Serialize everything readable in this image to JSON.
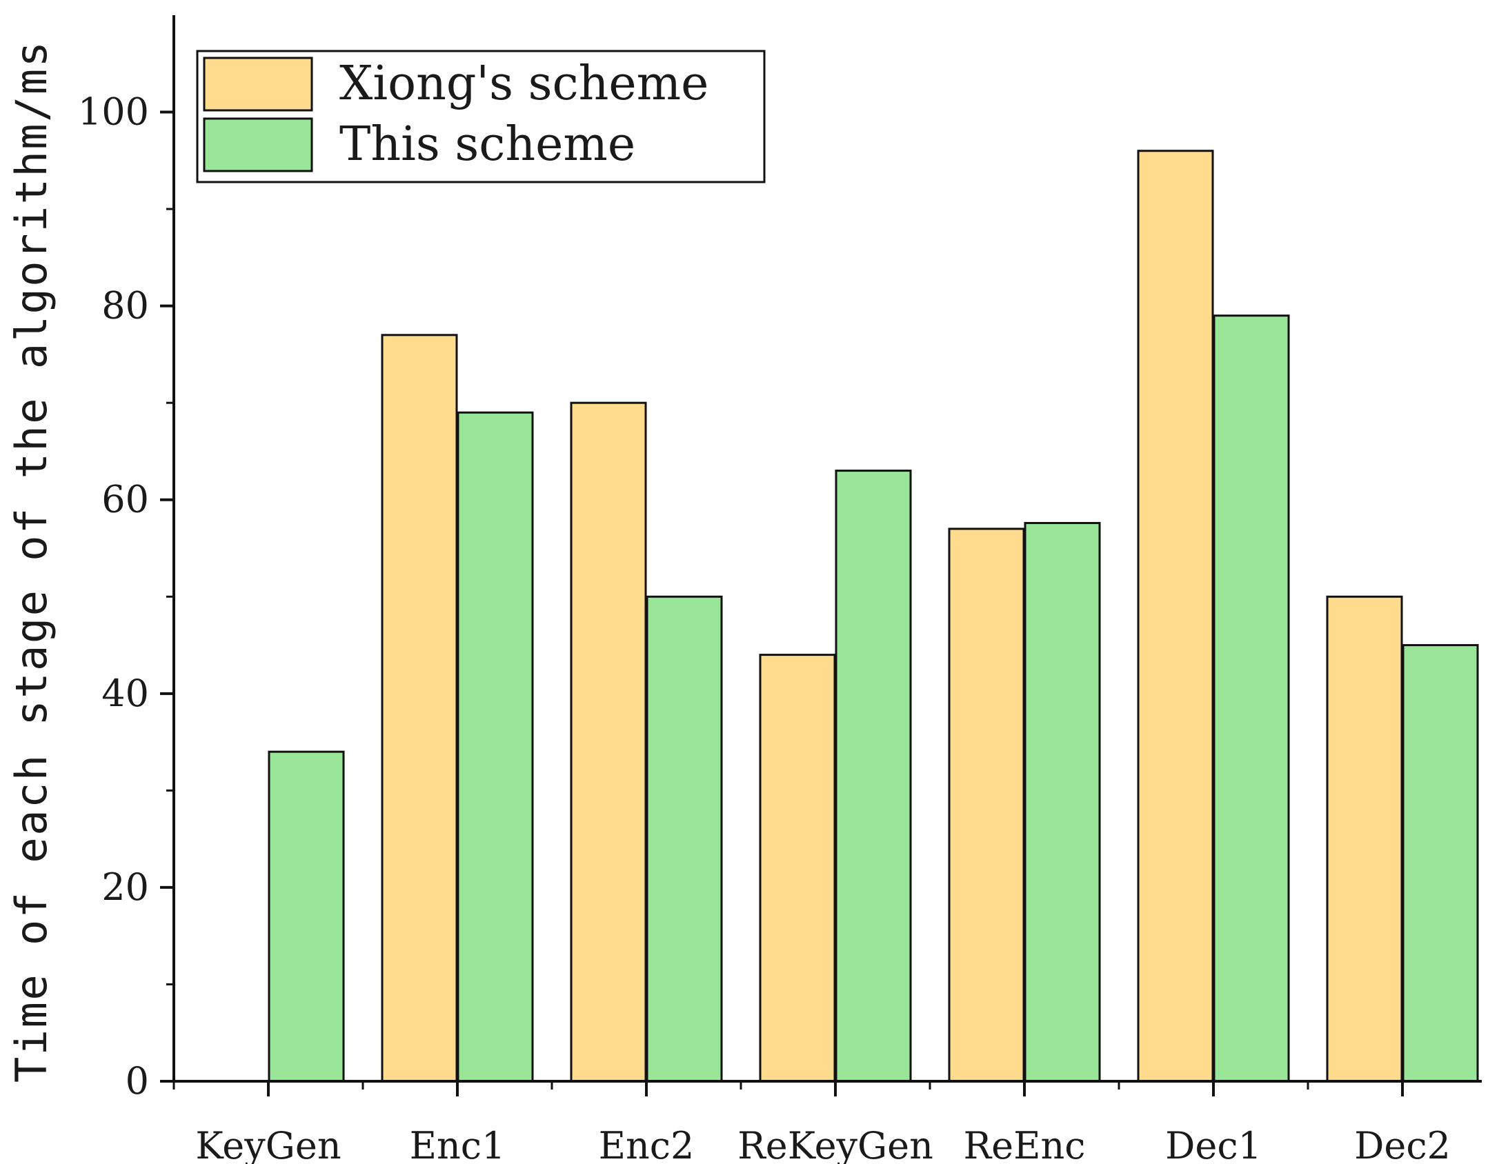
{
  "chart_data": {
    "type": "bar",
    "categories": [
      "KeyGen",
      "Enc1",
      "Enc2",
      "ReKeyGen",
      "ReEnc",
      "Dec1",
      "Dec2"
    ],
    "series": [
      {
        "name": "Xiong's scheme",
        "color": "#FFDB8E",
        "values": [
          0,
          77,
          70,
          44,
          57,
          96,
          50
        ]
      },
      {
        "name": "This scheme",
        "color": "#99E699",
        "values": [
          34,
          69,
          50,
          63,
          57.6,
          79,
          45
        ]
      }
    ],
    "xlabel": "",
    "ylabel": "Time of each stage of the algorithm/ms",
    "ylim": [
      0,
      110
    ],
    "yticks": [
      0,
      20,
      40,
      60,
      80,
      100
    ],
    "legend_position": "top-left",
    "grid": false
  }
}
